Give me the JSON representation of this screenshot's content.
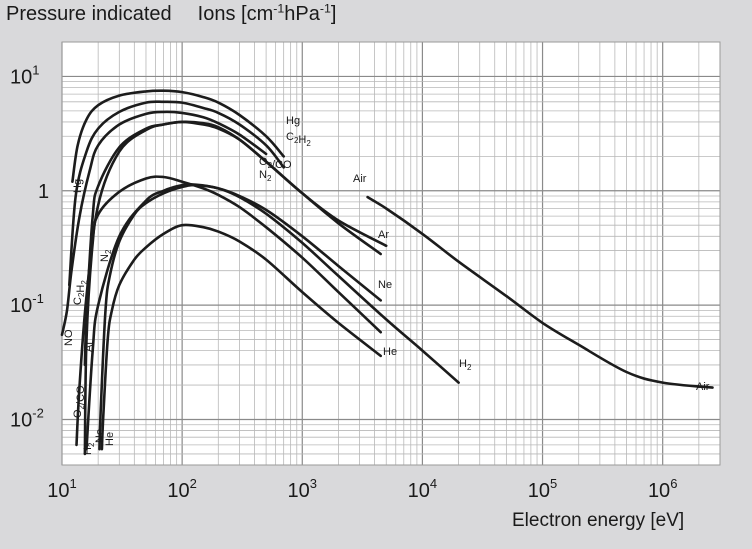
{
  "chart_data": {
    "type": "line",
    "title": "",
    "ylabel_parts": [
      "Pressure indicated",
      "Ions [cm",
      "-1",
      "hPa",
      "-1",
      "]"
    ],
    "xlabel": "Electron energy [eV]",
    "x_scale": "log",
    "y_scale": "log",
    "xlim": [
      10,
      3000000
    ],
    "ylim": [
      0.004,
      20
    ],
    "grid": true,
    "legend": "none",
    "x_ticks": [
      {
        "base": "10",
        "exp": "1",
        "value": 10
      },
      {
        "base": "10",
        "exp": "2",
        "value": 100
      },
      {
        "base": "10",
        "exp": "3",
        "value": 1000
      },
      {
        "base": "10",
        "exp": "4",
        "value": 10000
      },
      {
        "base": "10",
        "exp": "5",
        "value": 100000
      },
      {
        "base": "10",
        "exp": "6",
        "value": 1000000
      }
    ],
    "y_ticks": [
      {
        "base": "10",
        "exp": "1",
        "value": 10
      },
      {
        "base": "1",
        "exp": "",
        "value": 1
      },
      {
        "base": "10",
        "exp": "-1",
        "value": 0.1
      },
      {
        "base": "10",
        "exp": "-2",
        "value": 0.01
      }
    ],
    "series": [
      {
        "name": "Hg",
        "label_main": "Hg",
        "label_sub": "",
        "x": [
          12.2,
          13.5,
          16,
          20,
          30,
          50,
          70,
          100,
          150,
          200,
          300,
          500,
          700
        ],
        "y": [
          1.2,
          2.5,
          4.2,
          5.6,
          6.8,
          7.4,
          7.5,
          7.3,
          6.6,
          5.9,
          4.6,
          3.0,
          2.0
        ]
      },
      {
        "name": "C2H2",
        "label_main": "C",
        "label_sub": "2H2",
        "x": [
          11.5,
          13,
          16,
          20,
          30,
          50,
          70,
          100,
          150,
          200,
          300,
          500,
          700
        ],
        "y": [
          0.15,
          0.9,
          2.2,
          3.5,
          4.9,
          5.9,
          6.0,
          5.9,
          5.3,
          4.8,
          3.8,
          2.5,
          1.6
        ]
      },
      {
        "name": "NO",
        "label_main": "NO",
        "label_sub": "",
        "x": [
          10,
          11,
          12,
          14,
          17,
          20,
          30,
          50,
          70,
          100,
          150,
          200,
          300,
          500
        ],
        "y": [
          0.055,
          0.09,
          0.2,
          0.6,
          1.5,
          2.5,
          3.8,
          4.7,
          4.9,
          4.8,
          4.4,
          3.9,
          3.1,
          2.1
        ]
      },
      {
        "name": "O2/CO",
        "label_main": "O",
        "label_sub": "2/CO",
        "x": [
          13.2,
          14,
          16,
          20,
          30,
          50,
          70,
          100,
          150,
          200,
          300,
          500,
          1000,
          2000,
          5000
        ],
        "y": [
          0.006,
          0.02,
          0.12,
          0.75,
          2.2,
          3.4,
          3.8,
          4.0,
          3.9,
          3.6,
          2.8,
          1.8,
          0.95,
          0.55,
          0.33
        ]
      },
      {
        "name": "Ar",
        "label_main": "Ar",
        "label_sub": "",
        "x": [
          15.5,
          16,
          18,
          20,
          30,
          50,
          70,
          100,
          150,
          200,
          300,
          500,
          1000,
          2000,
          4500
        ],
        "y": [
          0.03,
          0.08,
          0.6,
          1.1,
          2.4,
          3.5,
          3.8,
          4.0,
          3.8,
          3.5,
          2.8,
          1.8,
          0.95,
          0.52,
          0.28
        ]
      },
      {
        "name": "N2",
        "label_main": "N",
        "label_sub": "2",
        "x": [
          15.5,
          16,
          18,
          20,
          30,
          50,
          70,
          100,
          150,
          200,
          300,
          500,
          1000,
          2000,
          4500
        ],
        "y": [
          0.005,
          0.05,
          0.35,
          0.62,
          0.98,
          1.28,
          1.32,
          1.2,
          1.05,
          0.92,
          0.72,
          0.48,
          0.26,
          0.13,
          0.058
        ]
      },
      {
        "name": "Ne",
        "label_main": "Ne",
        "label_sub": "",
        "x": [
          20.5,
          21,
          23,
          25,
          30,
          40,
          50,
          70,
          100,
          130,
          200,
          300,
          500,
          1000,
          2000,
          4500
        ],
        "y": [
          0.0055,
          0.012,
          0.09,
          0.18,
          0.36,
          0.62,
          0.78,
          0.95,
          1.08,
          1.12,
          1.05,
          0.9,
          0.68,
          0.4,
          0.22,
          0.11
        ]
      },
      {
        "name": "He",
        "label_main": "He",
        "label_sub": "",
        "x": [
          21.5,
          22,
          24,
          26,
          30,
          40,
          50,
          70,
          100,
          150,
          200,
          300,
          500,
          1000,
          2000,
          4500
        ],
        "y": [
          0.0055,
          0.01,
          0.05,
          0.09,
          0.15,
          0.25,
          0.32,
          0.42,
          0.5,
          0.48,
          0.44,
          0.36,
          0.25,
          0.13,
          0.07,
          0.036
        ]
      },
      {
        "name": "H2",
        "label_main": "H",
        "label_sub": "2",
        "x": [
          16,
          18,
          20,
          30,
          50,
          70,
          100,
          130,
          200,
          300,
          500,
          1000,
          2000,
          5000,
          10000,
          20000
        ],
        "y": [
          0.0055,
          0.04,
          0.1,
          0.4,
          0.82,
          1.0,
          1.12,
          1.13,
          1.05,
          0.88,
          0.63,
          0.35,
          0.18,
          0.075,
          0.04,
          0.021
        ]
      },
      {
        "name": "Air",
        "label_main": "Air",
        "label_sub": "",
        "x": [
          3500,
          5000,
          10000,
          20000,
          50000,
          100000,
          200000,
          500000,
          1000000,
          2600000
        ],
        "y": [
          0.88,
          0.7,
          0.42,
          0.24,
          0.12,
          0.07,
          0.045,
          0.026,
          0.021,
          0.019
        ]
      }
    ]
  }
}
